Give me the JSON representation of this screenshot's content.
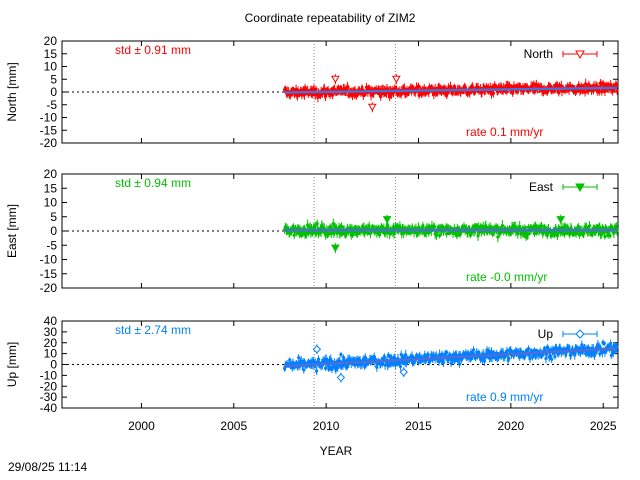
{
  "chart_data": {
    "type": "scatter",
    "title": "Coordinate repeatability of ZIM2",
    "xlabel": "YEAR",
    "xlim": [
      1995.7,
      2025.8
    ],
    "xticks": [
      2000,
      2005,
      2010,
      2015,
      2020,
      2025
    ],
    "vlines": [
      2009.35,
      2013.75
    ],
    "timestamp": "29/08/25 11:14",
    "data_start": 2007.75,
    "data_end": 2025.75,
    "panels": [
      {
        "name": "North",
        "ylabel": "North [mm]",
        "ylim": [
          -20,
          20
        ],
        "yticks": [
          -20,
          -15,
          -10,
          -5,
          0,
          5,
          10,
          15,
          20
        ],
        "color": "#ff0000",
        "marker": "triangle-down-open",
        "std_label": "std ± 0.91 mm",
        "rate_label": "rate  0.1 mm/yr",
        "rate_mm_per_yr": 0.1,
        "trend_start": -0.2,
        "scatter_mm": 1.5,
        "errorbar_mm": 1.6,
        "outliers": [
          [
            2010.5,
            5
          ],
          [
            2013.8,
            5
          ],
          [
            2012.5,
            -6
          ]
        ]
      },
      {
        "name": "East",
        "ylabel": "East [mm]",
        "ylim": [
          -20,
          20
        ],
        "yticks": [
          -20,
          -15,
          -10,
          -5,
          0,
          5,
          10,
          15,
          20
        ],
        "color": "#00c000",
        "marker": "triangle-down-filled",
        "std_label": "std ± 0.94 mm",
        "rate_label": "rate -0.0 mm/yr",
        "rate_mm_per_yr": -0.0,
        "trend_start": 0.3,
        "scatter_mm": 1.5,
        "errorbar_mm": 1.5,
        "outliers": [
          [
            2010.5,
            -6
          ],
          [
            2013.3,
            4
          ],
          [
            2022.7,
            4
          ]
        ]
      },
      {
        "name": "Up",
        "ylabel": "Up [mm]",
        "ylim": [
          -40,
          40
        ],
        "yticks": [
          -40,
          -30,
          -20,
          -10,
          0,
          10,
          20,
          30,
          40
        ],
        "color": "#0080ff",
        "marker": "diamond-open",
        "std_label": "std ± 2.74 mm",
        "rate_label": "rate  0.9 mm/yr",
        "rate_mm_per_yr": 0.9,
        "trend_start": -1.5,
        "scatter_mm": 4.5,
        "errorbar_mm": 3.5,
        "outliers": [
          [
            2009.5,
            14
          ],
          [
            2010.8,
            -12
          ],
          [
            2014.2,
            -7
          ]
        ]
      }
    ]
  }
}
